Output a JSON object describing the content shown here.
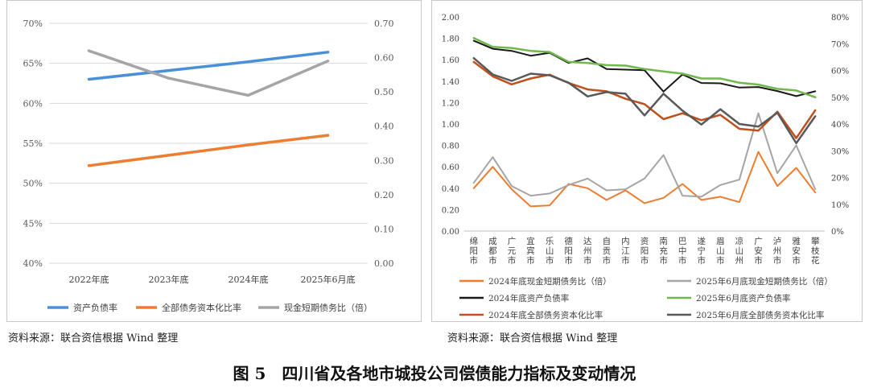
{
  "caption": "图 5　四川省及各地市城投公司偿债能力指标及变动情况",
  "source_left": "资料来源：联合资信根据 Wind 整理",
  "source_right": "资料来源：联合资信根据 Wind 整理",
  "colors": {
    "blue": "#4a90d9",
    "orange": "#ed7d31",
    "gray": "#a5a5a5",
    "black": "#1a1a1a",
    "green": "#70b84c",
    "dark_orange": "#c0501c",
    "dark_gray": "#595959"
  },
  "chart_data": [
    {
      "type": "line",
      "categories": [
        "2022年底",
        "2023年底",
        "2024年底",
        "2025年6月底"
      ],
      "y_left": {
        "min": 0.4,
        "max": 0.7,
        "ticks": [
          "40%",
          "45%",
          "50%",
          "55%",
          "60%",
          "65%",
          "70%"
        ]
      },
      "y_right": {
        "min": 0.0,
        "max": 0.7,
        "ticks": [
          "0.00",
          "0.10",
          "0.20",
          "0.30",
          "0.40",
          "0.50",
          "0.60",
          "0.70"
        ]
      },
      "legend_position": "bottom",
      "series": [
        {
          "name": "资产负债率",
          "axis": "left",
          "color": "#4a90d9",
          "values": [
            0.63,
            0.641,
            0.652,
            0.664
          ]
        },
        {
          "name": "全部债务资本化比率",
          "axis": "left",
          "color": "#ed7d31",
          "values": [
            0.522,
            0.535,
            0.548,
            0.56
          ]
        },
        {
          "name": "现金短期债务比（倍）",
          "axis": "right",
          "color": "#a5a5a5",
          "values": [
            0.62,
            0.54,
            0.49,
            0.59
          ]
        }
      ]
    },
    {
      "type": "line",
      "categories": [
        "绵阳市",
        "成都市",
        "广元市",
        "宜宾市",
        "乐山市",
        "德阳市",
        "达州市",
        "自贡市",
        "内江市",
        "资阳市",
        "南充市",
        "巴中市",
        "遂宁市",
        "眉山市",
        "凉山州",
        "广安市",
        "泸州市",
        "雅安市",
        "攀枝花"
      ],
      "y_left": {
        "min": 0.0,
        "max": 2.0,
        "ticks": [
          "0.00",
          "0.20",
          "0.40",
          "0.60",
          "0.80",
          "1.00",
          "1.20",
          "1.40",
          "1.60",
          "1.80",
          "2.00"
        ]
      },
      "y_right": {
        "min": 0.0,
        "max": 0.8,
        "ticks": [
          "0%",
          "10%",
          "20%",
          "30%",
          "40%",
          "50%",
          "60%",
          "70%",
          "80%"
        ]
      },
      "legend_position": "bottom",
      "series": [
        {
          "name": "2024年底现金短期债务比（倍）",
          "axis": "left",
          "color": "#ed7d31",
          "width": 2,
          "values": [
            0.4,
            0.6,
            0.39,
            0.23,
            0.24,
            0.44,
            0.4,
            0.29,
            0.38,
            0.26,
            0.31,
            0.44,
            0.29,
            0.32,
            0.27,
            0.74,
            0.42,
            0.59,
            0.36
          ]
        },
        {
          "name": "2025年6月底现金短期债务比（倍）",
          "axis": "left",
          "color": "#a5a5a5",
          "width": 2,
          "values": [
            0.45,
            0.69,
            0.42,
            0.33,
            0.35,
            0.43,
            0.49,
            0.38,
            0.39,
            0.49,
            0.71,
            0.33,
            0.32,
            0.43,
            0.48,
            1.1,
            0.54,
            0.8,
            0.39
          ]
        },
        {
          "name": "2024年底资产负债率",
          "axis": "right",
          "color": "#1a1a1a",
          "width": 2,
          "values": [
            0.711,
            0.681,
            0.673,
            0.655,
            0.666,
            0.628,
            0.645,
            0.605,
            0.603,
            0.601,
            0.521,
            0.585,
            0.553,
            0.552,
            0.536,
            0.538,
            0.523,
            0.504,
            0.522
          ]
        },
        {
          "name": "2025年6月底资产负债率",
          "axis": "right",
          "color": "#70b84c",
          "width": 2.5,
          "values": [
            0.721,
            0.688,
            0.684,
            0.673,
            0.669,
            0.632,
            0.628,
            0.62,
            0.618,
            0.605,
            0.596,
            0.588,
            0.57,
            0.57,
            0.554,
            0.547,
            0.531,
            0.525,
            0.5
          ]
        },
        {
          "name": "2024年底全部债务资本化比率",
          "axis": "right",
          "color": "#c0501c",
          "width": 2.5,
          "values": [
            0.632,
            0.578,
            0.548,
            0.57,
            0.584,
            0.553,
            0.529,
            0.522,
            0.494,
            0.474,
            0.418,
            0.44,
            0.414,
            0.434,
            0.382,
            0.375,
            0.446,
            0.347,
            0.451
          ]
        },
        {
          "name": "2025年6月底全部债务资本化比率",
          "axis": "right",
          "color": "#595959",
          "width": 2.5,
          "values": [
            0.646,
            0.585,
            0.561,
            0.588,
            0.582,
            0.554,
            0.503,
            0.519,
            0.513,
            0.432,
            0.513,
            0.45,
            0.398,
            0.455,
            0.4,
            0.39,
            0.442,
            0.328,
            0.429
          ]
        }
      ]
    }
  ]
}
